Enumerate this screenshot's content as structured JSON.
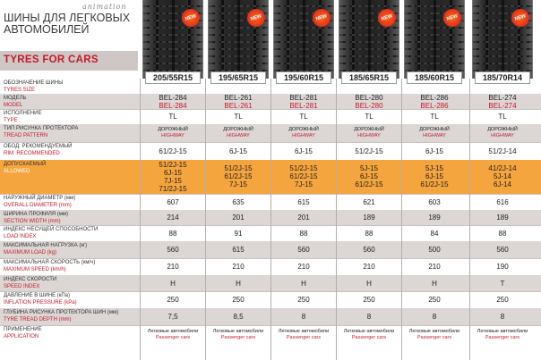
{
  "header": {
    "brand": "animation",
    "title_ru": "ШИНЫ ДЛЯ ЛЕГКОВЫХ АВТОМОБИЛЕЙ",
    "title_en": "TYRES FOR CARS",
    "badge": "NEW"
  },
  "columns": [
    {
      "size": "205/55R15",
      "new": true
    },
    {
      "size": "195/65R15",
      "new": true
    },
    {
      "size": "195/60R15",
      "new": true
    },
    {
      "size": "185/65R15",
      "new": true
    },
    {
      "size": "185/60R15",
      "new": true
    },
    {
      "size": "185/70R14",
      "new": true
    }
  ],
  "rows": {
    "size_label": {
      "ru": "ОБОЗНАЧЕНИЕ ШИНЫ",
      "en": "TYRES SIZE"
    },
    "model": {
      "ru": "МОДЕЛЬ",
      "en": "MODEL",
      "values": [
        [
          "BEL-284",
          "BEL-284"
        ],
        [
          "BEL-261",
          "BEL-261"
        ],
        [
          "BEL-281",
          "BEL-281"
        ],
        [
          "BEL-280",
          "BEL-280"
        ],
        [
          "BEL-286",
          "BEL-286"
        ],
        [
          "BEL-274",
          "BEL-274"
        ]
      ]
    },
    "type": {
      "ru": "ИСПОЛНЕНИЕ",
      "en": "TYPE",
      "values": [
        "TL",
        "TL",
        "TL",
        "TL",
        "TL",
        "TL"
      ]
    },
    "tread": {
      "ru": "ТИП РИСУНКА ПРОТЕКТОРА",
      "en": "TREAD PATTERN",
      "value_ru": "ДОРОЖНЫЙ",
      "value_en": "HIGHWAY"
    },
    "rim_rec": {
      "ru": "ОБОД:   РЕКОМЕНДУЕМЫЙ",
      "en": "RIM:      RECOMMENDED",
      "values": [
        "61/2J-15",
        "6J-15",
        "6J-15",
        "51/2J-15",
        "6J-15",
        "51/2J-14"
      ]
    },
    "rim_allowed": {
      "ru": "ДОПУСКАЕМЫЙ",
      "en": "ALLOWED",
      "values": [
        [
          "51/2J-15",
          "6J-15",
          "7J-15",
          "71/2J-15"
        ],
        [
          "51/2J-15",
          "61/2J-15",
          "7J-15"
        ],
        [
          "51/2J-15",
          "61/2J-15",
          "7J-15"
        ],
        [
          "5J-15",
          "6J-15",
          "61/2J-15"
        ],
        [
          "5J-15",
          "6J-15",
          "61/2J-15"
        ],
        [
          "41/2J-14",
          "5J-14",
          "6J-14"
        ]
      ]
    },
    "overall_diameter": {
      "ru": "НАРУЖНЫЙ ДИАМЕТР (мм)",
      "en": "OVERALL DIAMETER (mm)",
      "values": [
        "607",
        "635",
        "615",
        "621",
        "603",
        "616"
      ]
    },
    "section_width": {
      "ru": "ШИРИНА ПРОФИЛЯ (мм)",
      "en": "SECTION WIDTH (mm)",
      "values": [
        "214",
        "201",
        "201",
        "189",
        "189",
        "189"
      ]
    },
    "load_index": {
      "ru": "ИНДЕКС НЕСУЩЕЙ СПОСОБНОСТИ",
      "en": "LOAD INDEX",
      "values": [
        "88",
        "91",
        "88",
        "88",
        "84",
        "88"
      ]
    },
    "max_load": {
      "ru": "МАКСИМАЛЬНАЯ НАГРУЗКА (кг)",
      "en": "MAXIMUM LOAD (kg)",
      "values": [
        "560",
        "615",
        "560",
        "560",
        "500",
        "560"
      ]
    },
    "max_speed": {
      "ru": "МАКСИМАЛЬНАЯ СКОРОСТЬ (км/ч)",
      "en": "MAXIMUM SPEED (km/h)",
      "values": [
        "210",
        "210",
        "210",
        "210",
        "210",
        "190"
      ]
    },
    "speed_index": {
      "ru": "ИНДЕКС СКОРОСТИ",
      "en": "SPEED INDEX",
      "values": [
        "H",
        "H",
        "H",
        "H",
        "H",
        "T"
      ]
    },
    "inflation": {
      "ru": "ДАВЛЕНИЕ В ШИНЕ (кПа)",
      "en": "INFLATION PRESSURE (kPa)",
      "values": [
        "250",
        "250",
        "250",
        "250",
        "250",
        "250"
      ]
    },
    "tread_depth": {
      "ru": "ГЛУБИНА РИСУНКА ПРОТЕКТОРА ШИН (мм)",
      "en": "TYRE TREAD DEPTH (mm)",
      "values": [
        "7,5",
        "8,5",
        "8",
        "8",
        "8",
        "8"
      ]
    },
    "application": {
      "ru": "ПРИМЕНЕНИЕ",
      "en": "APPLICATION",
      "value_ru": "Легковые автомобили",
      "value_en": "Passenger cars"
    }
  },
  "colors": {
    "accent_red": "#c41a2b",
    "orange_band": "#f5a53d",
    "grey_band": "#dcd6d4"
  }
}
